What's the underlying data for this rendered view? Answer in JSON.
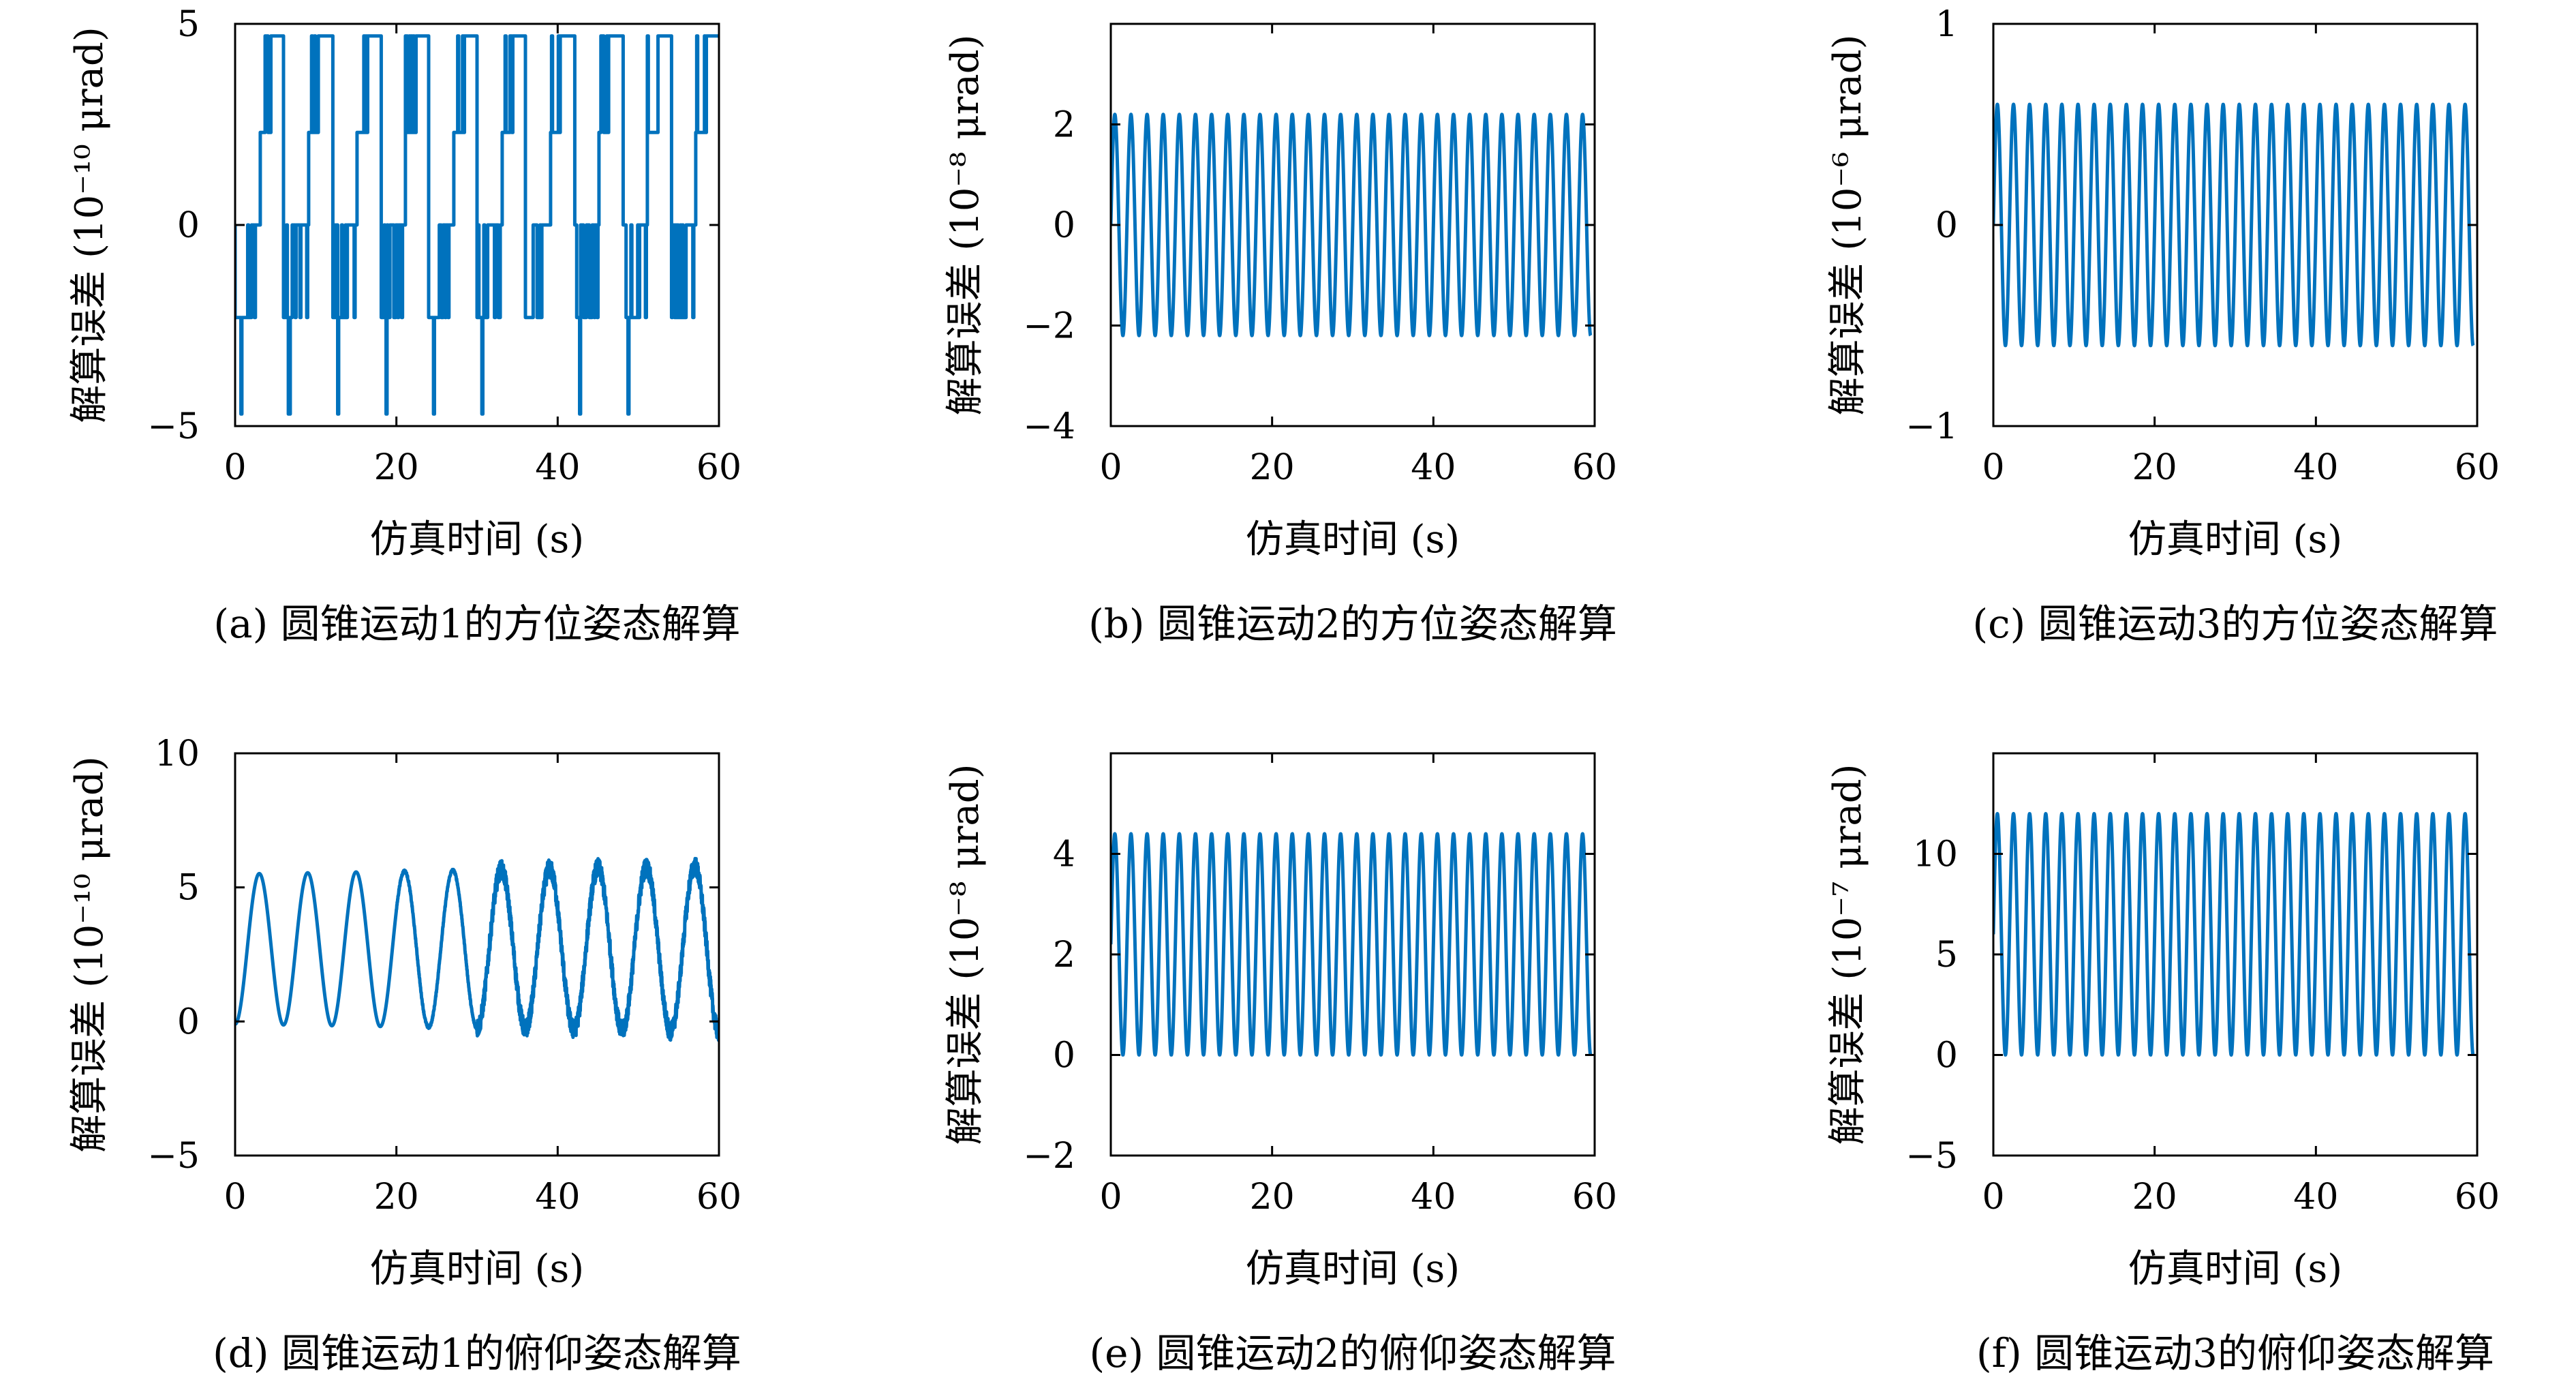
{
  "colors": {
    "series": "#0072bd",
    "axis": "#000000",
    "background": "#ffffff"
  },
  "chart_data": [
    {
      "panel": "a",
      "type": "line",
      "caption": "(a) 圆锥运动1的方位姿态解算",
      "xlabel": "仿真时间 (s)",
      "ylabel": "解算误差 (10⁻¹⁰ μrad)",
      "xlim": [
        0,
        60
      ],
      "ylim": [
        -5,
        5
      ],
      "xticks": [
        0,
        20,
        40,
        60
      ],
      "yticks": [
        -5,
        0,
        5
      ],
      "series": [
        {
          "shape": "quantized-staircase",
          "levels": [
            -4.7,
            -2.3,
            0,
            2.3,
            4.7
          ],
          "period": 6.0,
          "x_range": [
            0,
            60
          ]
        }
      ]
    },
    {
      "panel": "b",
      "type": "line",
      "caption": "(b) 圆锥运动2的方位姿态解算",
      "xlabel": "仿真时间 (s)",
      "ylabel": "解算误差 (10⁻⁸ μrad)",
      "xlim": [
        0,
        60
      ],
      "ylim": [
        -4,
        4
      ],
      "xticks": [
        0,
        20,
        40,
        60
      ],
      "yticks": [
        -4,
        -2,
        0,
        2
      ],
      "series": [
        {
          "shape": "sine",
          "amplitude": 2.2,
          "offset": 0,
          "period": 2.0,
          "x_range": [
            0,
            59.5
          ]
        }
      ]
    },
    {
      "panel": "c",
      "type": "line",
      "caption": "(c) 圆锥运动3的方位姿态解算",
      "xlabel": "仿真时间 (s)",
      "ylabel": "解算误差 (10⁻⁶ μrad)",
      "xlim": [
        0,
        60
      ],
      "ylim": [
        -1,
        1
      ],
      "xticks": [
        0,
        20,
        40,
        60
      ],
      "yticks": [
        -1,
        0,
        1
      ],
      "series": [
        {
          "shape": "sine",
          "amplitude": 0.6,
          "offset": 0,
          "period": 2.0,
          "x_range": [
            0,
            59.5
          ]
        }
      ]
    },
    {
      "panel": "d",
      "type": "line",
      "caption": "(d) 圆锥运动1的俯仰姿态解算",
      "xlabel": "仿真时间 (s)",
      "ylabel": "解算误差 (10⁻¹⁰ μrad)",
      "xlim": [
        0,
        60
      ],
      "ylim": [
        -5,
        10
      ],
      "xticks": [
        0,
        20,
        40,
        60
      ],
      "yticks": [
        -5,
        0,
        5,
        10
      ],
      "series": [
        {
          "shape": "offset-sine-noisy",
          "amplitude": 2.8,
          "offset": 2.7,
          "period": 6.0,
          "amplitude_growth": 0.3,
          "noise": [
            0,
            0.05,
            0.35
          ],
          "x_range": [
            0,
            60
          ]
        }
      ]
    },
    {
      "panel": "e",
      "type": "line",
      "caption": "(e) 圆锥运动2的俯仰姿态解算",
      "xlabel": "仿真时间 (s)",
      "ylabel": "解算误差 (10⁻⁸ μrad)",
      "xlim": [
        0,
        60
      ],
      "ylim": [
        -2,
        6
      ],
      "xticks": [
        0,
        20,
        40,
        60
      ],
      "yticks": [
        -2,
        0,
        2,
        4
      ],
      "series": [
        {
          "shape": "offset-sine",
          "amplitude": 2.2,
          "offset": 2.2,
          "period": 2.0,
          "x_range": [
            0,
            59.5
          ]
        }
      ]
    },
    {
      "panel": "f",
      "type": "line",
      "caption": "(f) 圆锥运动3的俯仰姿态解算",
      "xlabel": "仿真时间 (s)",
      "ylabel": "解算误差 (10⁻⁷ μrad)",
      "xlim": [
        0,
        60
      ],
      "ylim": [
        -5,
        15
      ],
      "xticks": [
        0,
        20,
        40,
        60
      ],
      "yticks": [
        -5,
        0,
        5,
        10
      ],
      "series": [
        {
          "shape": "offset-sine",
          "amplitude": 6.0,
          "offset": 6.0,
          "period": 2.0,
          "x_range": [
            0,
            59.5
          ]
        }
      ]
    }
  ]
}
